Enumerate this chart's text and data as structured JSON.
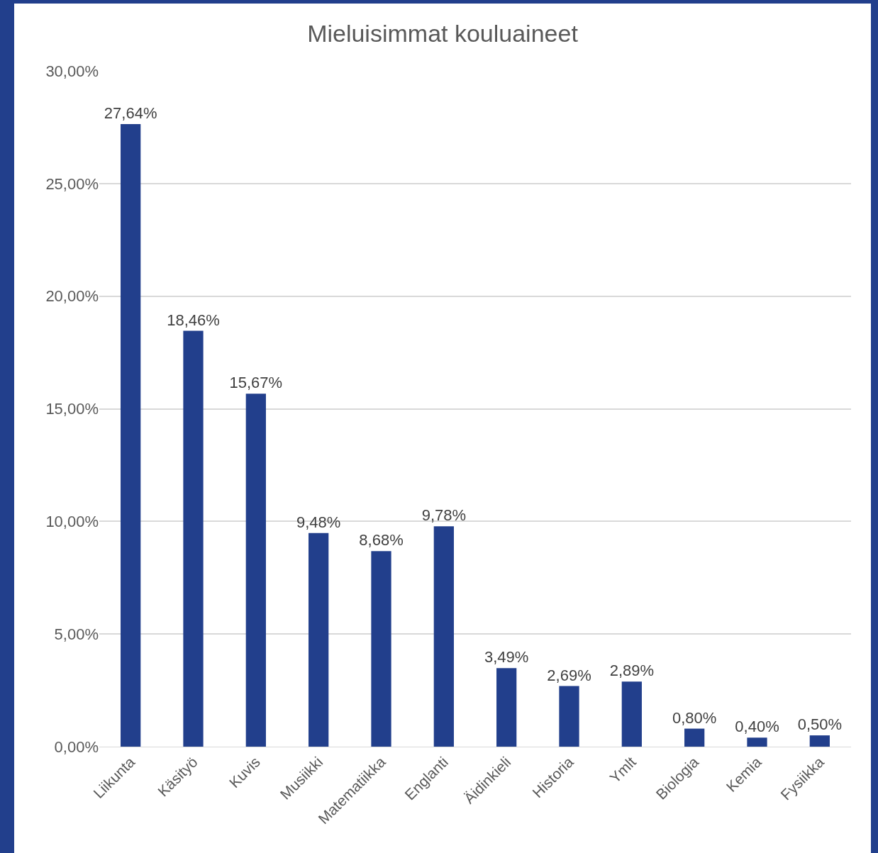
{
  "chart_data": {
    "type": "bar",
    "title": "Mieluisimmat kouluaineet",
    "categories": [
      "Liikunta",
      "Käsityö",
      "Kuvis",
      "Musiikki",
      "Matematiikka",
      "Englanti",
      "Äidinkieli",
      "Historia",
      "Ymlt",
      "Biologia",
      "Kemia",
      "Fysiikka"
    ],
    "values": [
      27.64,
      18.46,
      15.67,
      9.48,
      8.68,
      9.78,
      3.49,
      2.69,
      2.89,
      0.8,
      0.4,
      0.5
    ],
    "value_labels": [
      "27,64%",
      "18,46%",
      "15,67%",
      "9,48%",
      "8,68%",
      "9,78%",
      "3,49%",
      "2,69%",
      "2,89%",
      "0,80%",
      "0,40%",
      "0,50%"
    ],
    "color": "#223f8c",
    "ylim": [
      0,
      30
    ],
    "yticks": [
      {
        "value": 0,
        "label": "0,00%"
      },
      {
        "value": 5,
        "label": "5,00%"
      },
      {
        "value": 10,
        "label": "10,00%"
      },
      {
        "value": 15,
        "label": "15,00%"
      },
      {
        "value": 20,
        "label": "20,00%"
      },
      {
        "value": 25,
        "label": "25,00%"
      },
      {
        "value": 30,
        "label": "30,00%"
      }
    ],
    "grid": "y",
    "legend": false
  }
}
